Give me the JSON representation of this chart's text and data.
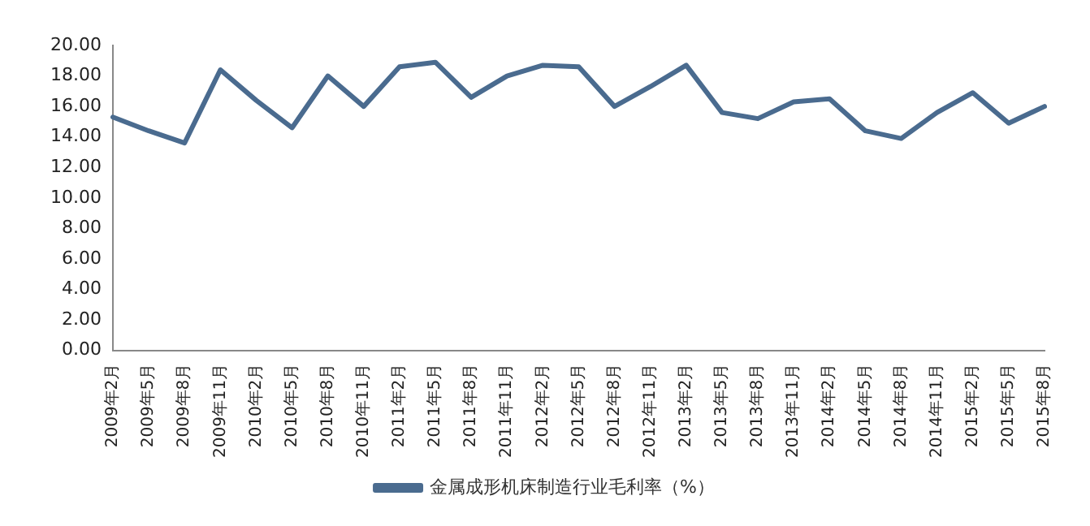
{
  "chart_data": {
    "type": "line",
    "categories": [
      "2009年2月",
      "2009年5月",
      "2009年8月",
      "2009年11月",
      "2010年2月",
      "2010年5月",
      "2010年8月",
      "2010年11月",
      "2011年2月",
      "2011年5月",
      "2011年8月",
      "2011年11月",
      "2012年2月",
      "2012年5月",
      "2012年8月",
      "2012年11月",
      "2013年2月",
      "2013年5月",
      "2013年8月",
      "2013年11月",
      "2014年2月",
      "2014年5月",
      "2014年8月",
      "2014年11月",
      "2015年2月",
      "2015年5月",
      "2015年8月"
    ],
    "series": [
      {
        "name": "金属成形机床制造行业毛利率（%）",
        "color": "#4a6b8f",
        "values": [
          15.3,
          14.4,
          13.6,
          18.4,
          16.4,
          14.6,
          18.0,
          16.0,
          18.6,
          18.9,
          16.6,
          18.0,
          18.7,
          18.6,
          16.0,
          17.3,
          18.7,
          15.6,
          15.2,
          16.3,
          16.5,
          14.4,
          13.9,
          15.6,
          16.9,
          14.9,
          16.0
        ]
      }
    ],
    "ylim": [
      0,
      20
    ],
    "yticks": [
      {
        "value": 0,
        "label": "0.00"
      },
      {
        "value": 2,
        "label": "2.00"
      },
      {
        "value": 4,
        "label": "4.00"
      },
      {
        "value": 6,
        "label": "6.00"
      },
      {
        "value": 8,
        "label": "8.00"
      },
      {
        "value": 10,
        "label": "10.00"
      },
      {
        "value": 12,
        "label": "12.00"
      },
      {
        "value": 14,
        "label": "14.00"
      },
      {
        "value": 16,
        "label": "16.00"
      },
      {
        "value": 18,
        "label": "18.00"
      },
      {
        "value": 20,
        "label": "20.00"
      }
    ],
    "grid": false,
    "legend": "bottom",
    "marker": "none",
    "line_style": "solid"
  }
}
